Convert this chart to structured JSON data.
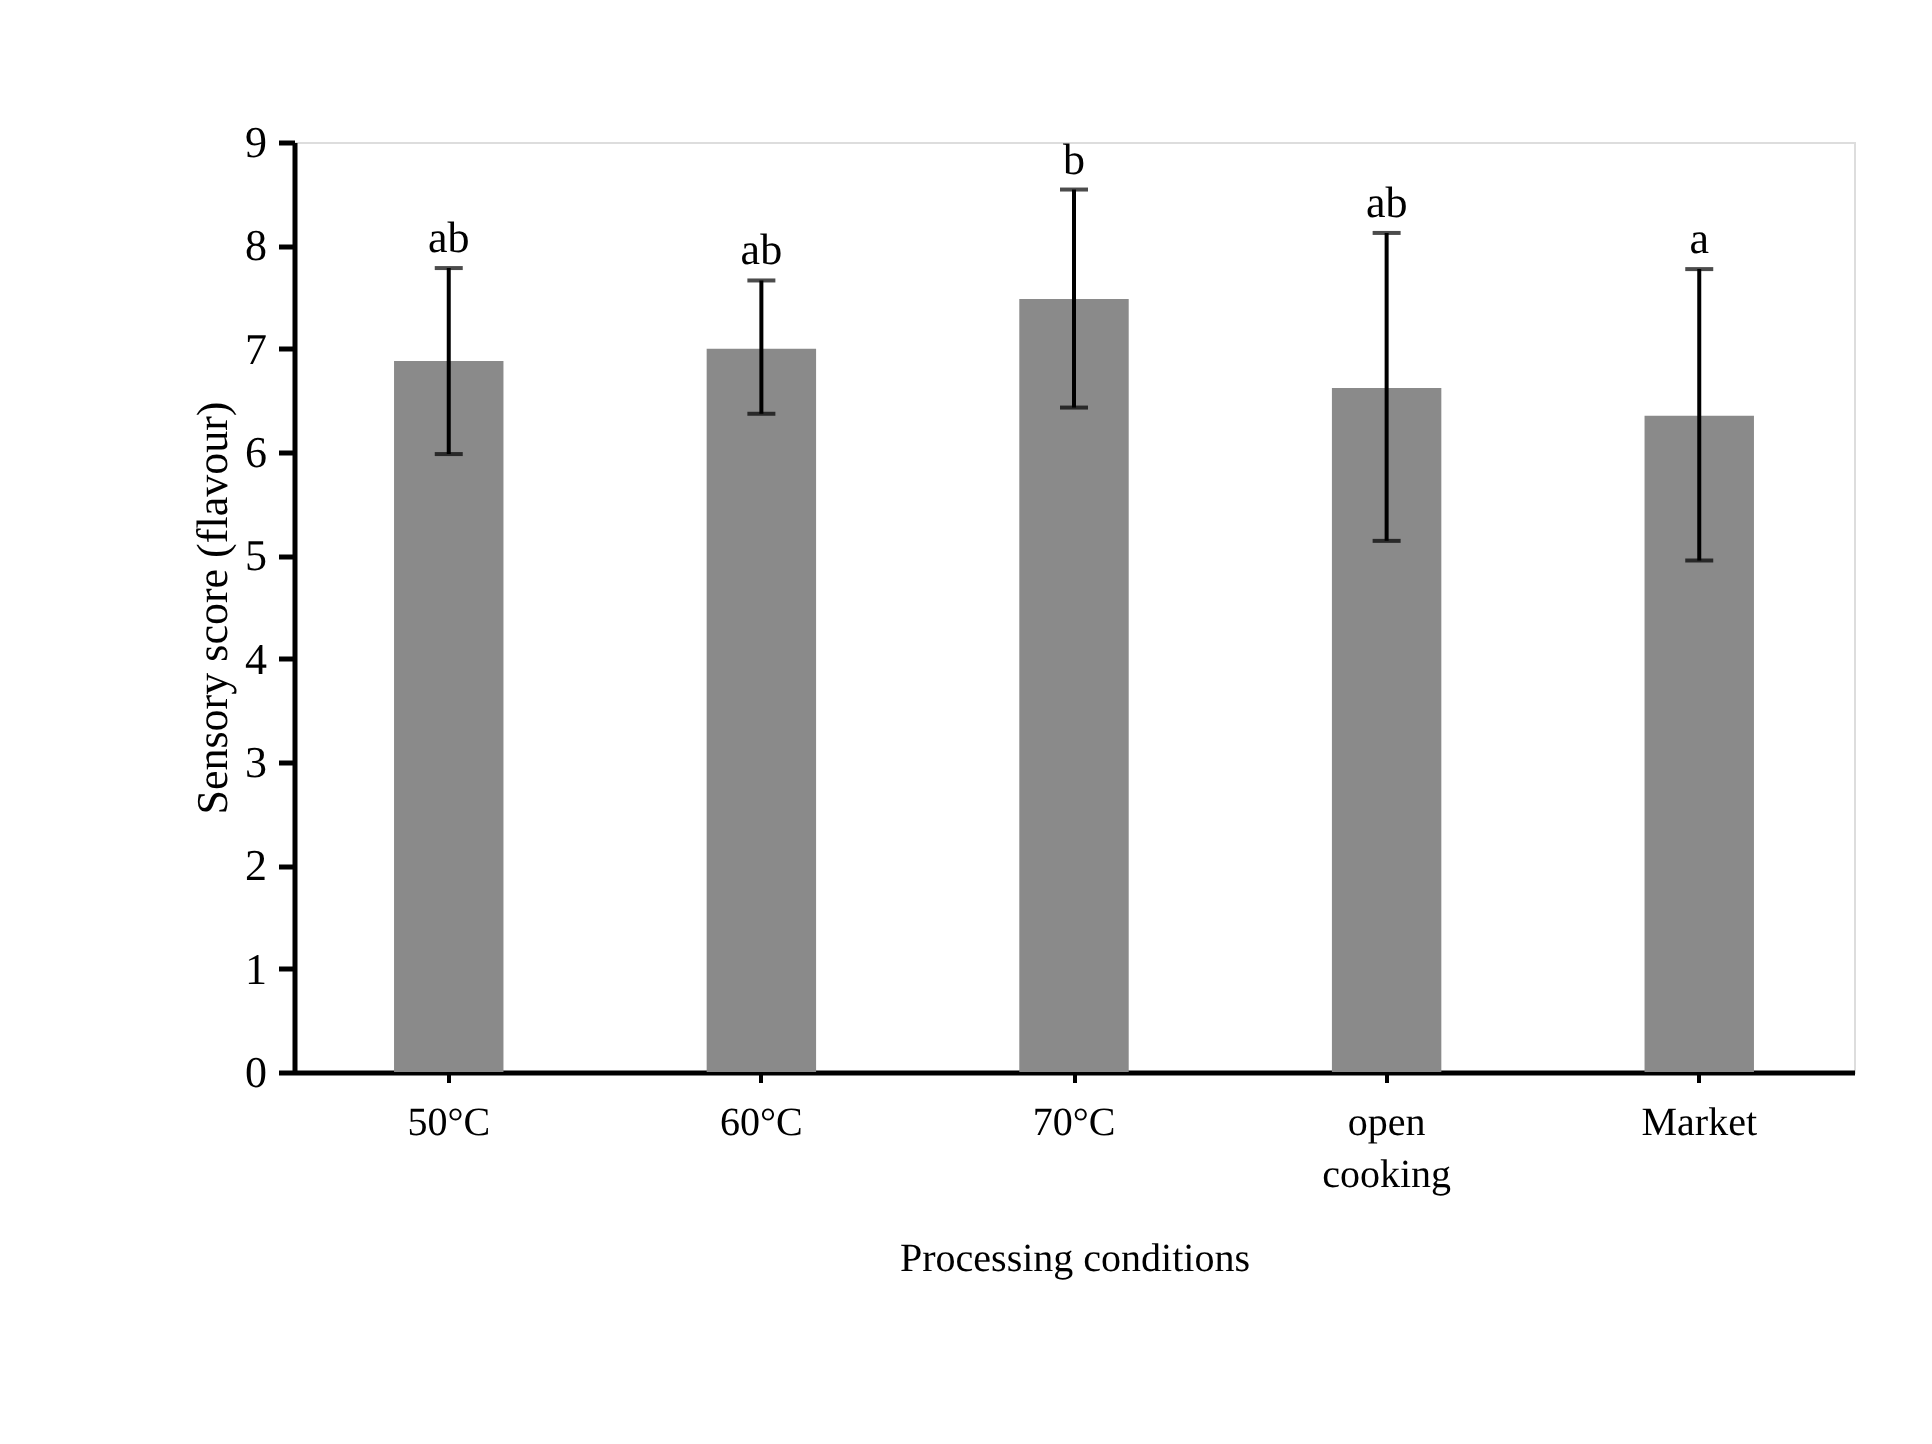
{
  "chart_data": {
    "type": "bar",
    "xlabel": "Processing conditions",
    "ylabel": "Sensory score (flavour)",
    "categories": [
      "50°C",
      "60°C",
      "70°C",
      "open cooking",
      "Market"
    ],
    "values": [
      6.88,
      7.0,
      7.48,
      6.62,
      6.35
    ],
    "errors": [
      [
        5.98,
        7.78
      ],
      [
        6.37,
        7.66
      ],
      [
        6.43,
        8.54
      ],
      [
        5.14,
        8.12
      ],
      [
        4.95,
        7.77
      ]
    ],
    "color": "#8a8a8a",
    "ylim": [
      0,
      9
    ],
    "yticks": [
      0,
      1,
      2,
      3,
      4,
      5,
      6,
      7,
      8,
      9
    ],
    "grid": false,
    "annotations": [
      {
        "text": "ab",
        "x": "50°C",
        "y": 7.78
      },
      {
        "text": "ab",
        "x": "60°C",
        "y": 7.66
      },
      {
        "text": "b",
        "x": "70°C",
        "y": 8.54
      },
      {
        "text": "ab",
        "x": "open cooking",
        "y": 8.12
      },
      {
        "text": "a",
        "x": "Market",
        "y": 7.77
      }
    ]
  }
}
